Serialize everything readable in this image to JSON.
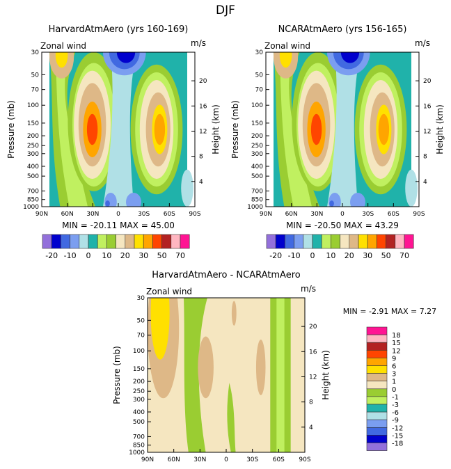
{
  "title": "DJF",
  "palette_top": [
    "#9370db",
    "#0000cd",
    "#4169e1",
    "#7b9ef0",
    "#b0e0e6",
    "#20b2aa",
    "#c0f060",
    "#9acd32",
    "#f5e6c0",
    "#deb887",
    "#ffe000",
    "#ffa500",
    "#ff4500",
    "#b22222",
    "#ffb6c1",
    "#ff1493"
  ],
  "chart_data": [
    {
      "type": "heatmap",
      "title": "HarvardAtmAero (yrs 160-169)",
      "left_label": "Zonal wind",
      "units": "m/s",
      "ylabel": "Pressure (mb)",
      "y2label": "Height (km)",
      "xticks": [
        "90N",
        "60N",
        "30N",
        "0",
        "30S",
        "60S",
        "90S"
      ],
      "yticks": [
        "30",
        "50",
        "70",
        "100",
        "150",
        "200",
        "250",
        "300",
        "400",
        "500",
        "700",
        "850",
        "1000"
      ],
      "y2ticks": [
        "4",
        "8",
        "12",
        "16",
        "20"
      ],
      "stats": "MIN = -20.11   MAX = 45.00"
    },
    {
      "type": "heatmap",
      "title": "NCARAtmAero (yrs 156-165)",
      "left_label": "Zonal wind",
      "units": "m/s",
      "ylabel": "Pressure (mb)",
      "y2label": "Height (km)",
      "xticks": [
        "90N",
        "60N",
        "30N",
        "0",
        "30S",
        "60S",
        "90S"
      ],
      "yticks": [
        "30",
        "50",
        "70",
        "100",
        "150",
        "200",
        "250",
        "300",
        "400",
        "500",
        "700",
        "850",
        "1000"
      ],
      "y2ticks": [
        "4",
        "8",
        "12",
        "16",
        "20"
      ],
      "stats": "MIN = -20.50   MAX = 43.29"
    },
    {
      "type": "heatmap",
      "title": "HarvardAtmAero - NCARAtmAero",
      "left_label": "Zonal wind",
      "units": "m/s",
      "ylabel": "Pressure (mb)",
      "y2label": "Height (km)",
      "xticks": [
        "90N",
        "60N",
        "30N",
        "0",
        "30S",
        "60S",
        "90S"
      ],
      "yticks": [
        "30",
        "50",
        "70",
        "100",
        "150",
        "200",
        "250",
        "300",
        "400",
        "500",
        "700",
        "850",
        "1000"
      ],
      "y2ticks": [
        "4",
        "8",
        "12",
        "16",
        "20"
      ],
      "stats": "MIN =   -2.91   MAX =    7.27"
    }
  ],
  "colorbar_top": {
    "labels": [
      "-20",
      "-10",
      "0",
      "10",
      "20",
      "30",
      "50",
      "70"
    ]
  },
  "colorbar_diff": {
    "labels": [
      "18",
      "15",
      "12",
      "9",
      "6",
      "3",
      "1",
      "0",
      "-1",
      "-3",
      "-6",
      "-9",
      "-12",
      "-15",
      "-18"
    ]
  }
}
